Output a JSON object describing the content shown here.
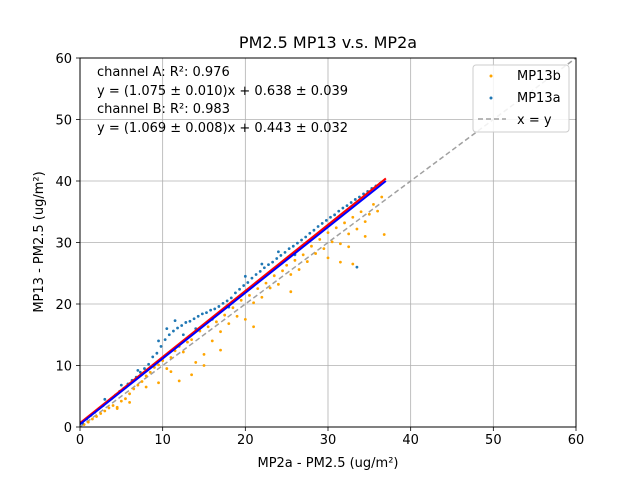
{
  "colors": {
    "mp13b": "#ffa500",
    "mp13a": "#1f77b4",
    "identity": "#a0a0a0",
    "fit_a": "#ff0000",
    "fit_b": "#0000ff",
    "grid": "#b0b0b0"
  },
  "chart_data": {
    "type": "scatter",
    "title": "PM2.5 MP13 v.s. MP2a",
    "xlabel": "MP2a - PM2.5 (ug/m²)",
    "ylabel": "MP13 - PM2.5 (ug/m²)",
    "xlim": [
      0,
      60
    ],
    "ylim": [
      0,
      60
    ],
    "xticks": [
      "0",
      "10",
      "20",
      "30",
      "40",
      "50",
      "60"
    ],
    "yticks": [
      "0",
      "10",
      "20",
      "30",
      "40",
      "50",
      "60"
    ],
    "grid": true,
    "legend_position": "top-right",
    "annotations": [
      "channel A: R²: 0.976",
      "y = (1.075 ± 0.010)x + 0.638 ± 0.039",
      "channel B: R²: 0.983",
      "y = (1.069 ± 0.008)x + 0.443 ± 0.032"
    ],
    "fits": [
      {
        "channel": "A",
        "slope": 1.075,
        "intercept": 0.638,
        "x_range": [
          0,
          37
        ],
        "color_key": "fit_a"
      },
      {
        "channel": "B",
        "slope": 1.069,
        "intercept": 0.443,
        "x_range": [
          0,
          37
        ],
        "color_key": "fit_b"
      }
    ],
    "identity_line": {
      "label": "x = y",
      "style": "dashed"
    },
    "series": [
      {
        "name": "MP13b",
        "color_key": "mp13b",
        "points": [
          [
            0.5,
            0.4
          ],
          [
            1.0,
            0.8
          ],
          [
            1.5,
            1.3
          ],
          [
            2.0,
            1.7
          ],
          [
            2.5,
            2.2
          ],
          [
            3.0,
            2.6
          ],
          [
            3.5,
            3.1
          ],
          [
            4.0,
            3.5
          ],
          [
            4.5,
            3.0
          ],
          [
            5.0,
            4.2
          ],
          [
            5.5,
            4.6
          ],
          [
            6.0,
            5.4
          ],
          [
            6.5,
            6.2
          ],
          [
            7.0,
            6.8
          ],
          [
            7.5,
            7.4
          ],
          [
            8.0,
            8.3
          ],
          [
            8.5,
            8.9
          ],
          [
            9.0,
            9.7
          ],
          [
            9.5,
            10.1
          ],
          [
            10.0,
            10.8
          ],
          [
            10.5,
            9.5
          ],
          [
            11.0,
            11.3
          ],
          [
            11.5,
            12.4
          ],
          [
            12.0,
            13.1
          ],
          [
            12.5,
            12.2
          ],
          [
            13.0,
            13.8
          ],
          [
            13.5,
            14.2
          ],
          [
            14.0,
            10.5
          ],
          [
            14.5,
            15.6
          ],
          [
            15.0,
            11.8
          ],
          [
            15.5,
            16.3
          ],
          [
            16.0,
            14.0
          ],
          [
            16.5,
            17.1
          ],
          [
            17.0,
            15.5
          ],
          [
            17.5,
            18.2
          ],
          [
            18.0,
            16.8
          ],
          [
            18.5,
            19.4
          ],
          [
            19.0,
            18.0
          ],
          [
            19.5,
            20.6
          ],
          [
            20.0,
            17.5
          ],
          [
            20.5,
            21.4
          ],
          [
            21.0,
            20.2
          ],
          [
            21.5,
            22.5
          ],
          [
            22.0,
            21.1
          ],
          [
            22.5,
            23.4
          ],
          [
            23.0,
            22.6
          ],
          [
            23.5,
            24.6
          ],
          [
            24.0,
            23.2
          ],
          [
            24.5,
            25.4
          ],
          [
            25.0,
            26.3
          ],
          [
            25.5,
            24.8
          ],
          [
            26.0,
            27.1
          ],
          [
            26.5,
            25.6
          ],
          [
            27.0,
            28.0
          ],
          [
            27.5,
            26.9
          ],
          [
            28.0,
            29.4
          ],
          [
            28.5,
            28.2
          ],
          [
            29.0,
            30.5
          ],
          [
            29.5,
            29.0
          ],
          [
            30.0,
            31.6
          ],
          [
            30.5,
            30.1
          ],
          [
            31.0,
            32.4
          ],
          [
            31.5,
            29.8
          ],
          [
            32.0,
            33.2
          ],
          [
            32.5,
            31.4
          ],
          [
            33.0,
            34.1
          ],
          [
            33.5,
            32.2
          ],
          [
            34.0,
            35.0
          ],
          [
            34.5,
            33.4
          ],
          [
            35.0,
            34.6
          ],
          [
            35.5,
            36.2
          ],
          [
            36.0,
            35.1
          ],
          [
            36.5,
            37.4
          ],
          [
            36.8,
            31.3
          ],
          [
            12.0,
            7.5
          ],
          [
            13.5,
            8.5
          ],
          [
            11.0,
            9.0
          ],
          [
            17.0,
            12.5
          ],
          [
            21.0,
            16.3
          ],
          [
            15.0,
            10.0
          ],
          [
            8.0,
            6.5
          ],
          [
            9.5,
            7.2
          ],
          [
            30.0,
            27.5
          ],
          [
            32.5,
            29.3
          ],
          [
            34.5,
            31.0
          ],
          [
            25.5,
            22.0
          ],
          [
            33.0,
            26.5
          ],
          [
            31.5,
            26.8
          ],
          [
            6.0,
            4.0
          ],
          [
            4.5,
            3.2
          ]
        ]
      },
      {
        "name": "MP13a",
        "color_key": "mp13a",
        "points": [
          [
            0.3,
            0.6
          ],
          [
            0.8,
            1.3
          ],
          [
            1.3,
            1.9
          ],
          [
            1.8,
            2.4
          ],
          [
            2.3,
            3.0
          ],
          [
            2.8,
            3.5
          ],
          [
            3.3,
            4.1
          ],
          [
            3.8,
            4.6
          ],
          [
            4.3,
            5.2
          ],
          [
            4.8,
            5.8
          ],
          [
            5.3,
            6.3
          ],
          [
            5.8,
            7.0
          ],
          [
            6.3,
            7.6
          ],
          [
            6.8,
            8.1
          ],
          [
            7.3,
            8.9
          ],
          [
            7.8,
            9.5
          ],
          [
            8.3,
            10.2
          ],
          [
            8.8,
            11.4
          ],
          [
            9.3,
            12.0
          ],
          [
            9.8,
            13.1
          ],
          [
            10.3,
            14.2
          ],
          [
            10.8,
            15.0
          ],
          [
            11.3,
            15.6
          ],
          [
            11.8,
            16.1
          ],
          [
            12.3,
            16.5
          ],
          [
            12.8,
            17.0
          ],
          [
            13.3,
            17.2
          ],
          [
            13.8,
            17.6
          ],
          [
            14.3,
            18.0
          ],
          [
            14.8,
            18.4
          ],
          [
            15.3,
            18.6
          ],
          [
            15.8,
            19.0
          ],
          [
            16.3,
            19.2
          ],
          [
            16.8,
            19.6
          ],
          [
            17.3,
            20.1
          ],
          [
            17.8,
            20.5
          ],
          [
            18.3,
            21.0
          ],
          [
            18.8,
            21.8
          ],
          [
            19.3,
            22.4
          ],
          [
            19.8,
            23.0
          ],
          [
            20.3,
            23.5
          ],
          [
            20.8,
            24.2
          ],
          [
            21.3,
            24.8
          ],
          [
            21.8,
            25.3
          ],
          [
            22.3,
            25.9
          ],
          [
            22.8,
            26.4
          ],
          [
            23.3,
            26.8
          ],
          [
            23.8,
            27.4
          ],
          [
            24.3,
            27.9
          ],
          [
            24.8,
            28.4
          ],
          [
            25.3,
            29.0
          ],
          [
            25.8,
            29.4
          ],
          [
            26.3,
            29.9
          ],
          [
            26.8,
            30.4
          ],
          [
            27.3,
            30.9
          ],
          [
            27.8,
            31.5
          ],
          [
            28.3,
            32.0
          ],
          [
            28.8,
            32.6
          ],
          [
            29.3,
            33.1
          ],
          [
            29.8,
            33.6
          ],
          [
            30.3,
            34.1
          ],
          [
            30.8,
            34.5
          ],
          [
            31.3,
            35.1
          ],
          [
            31.8,
            35.6
          ],
          [
            32.3,
            36.0
          ],
          [
            32.8,
            36.5
          ],
          [
            33.3,
            37.0
          ],
          [
            33.8,
            37.4
          ],
          [
            34.3,
            37.9
          ],
          [
            34.8,
            38.3
          ],
          [
            35.3,
            38.8
          ],
          [
            35.8,
            39.2
          ],
          [
            36.3,
            39.6
          ],
          [
            33.5,
            26.0
          ],
          [
            9.5,
            14.0
          ],
          [
            10.5,
            16.0
          ],
          [
            11.5,
            17.3
          ],
          [
            12.5,
            15.0
          ],
          [
            16.0,
            17.5
          ],
          [
            20.0,
            24.5
          ],
          [
            22.0,
            26.5
          ],
          [
            24.0,
            28.5
          ],
          [
            7.0,
            9.2
          ],
          [
            5.0,
            6.8
          ],
          [
            3.0,
            4.5
          ],
          [
            14.0,
            16.0
          ],
          [
            18.0,
            19.5
          ],
          [
            26.0,
            28.0
          ]
        ]
      }
    ]
  },
  "legend": [
    {
      "label": "MP13b",
      "type": "marker",
      "color_key": "mp13b"
    },
    {
      "label": "MP13a",
      "type": "marker",
      "color_key": "mp13a"
    },
    {
      "label": "x = y",
      "type": "dashed",
      "color_key": "identity"
    }
  ]
}
